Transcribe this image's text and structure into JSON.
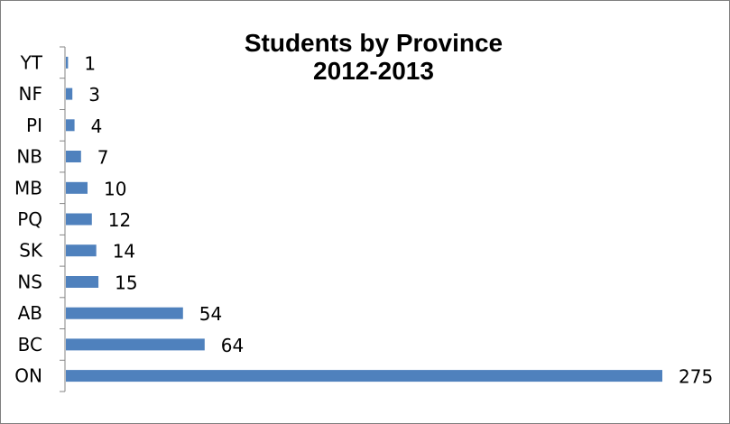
{
  "chart_data": {
    "type": "bar",
    "orientation": "horizontal",
    "title": "Students by Province\n2012-2013",
    "title_lines": [
      "Students by Province",
      "2012-2013"
    ],
    "categories": [
      "YT",
      "NF",
      "PI",
      "NB",
      "MB",
      "PQ",
      "SK",
      "NS",
      "AB",
      "BC",
      "ON"
    ],
    "values": [
      1,
      3,
      4,
      7,
      10,
      12,
      14,
      15,
      54,
      64,
      275
    ],
    "xlim": [
      0,
      275
    ],
    "grid": false,
    "legend": "none",
    "bar_color": "#4F81BD",
    "data_labels": true
  }
}
